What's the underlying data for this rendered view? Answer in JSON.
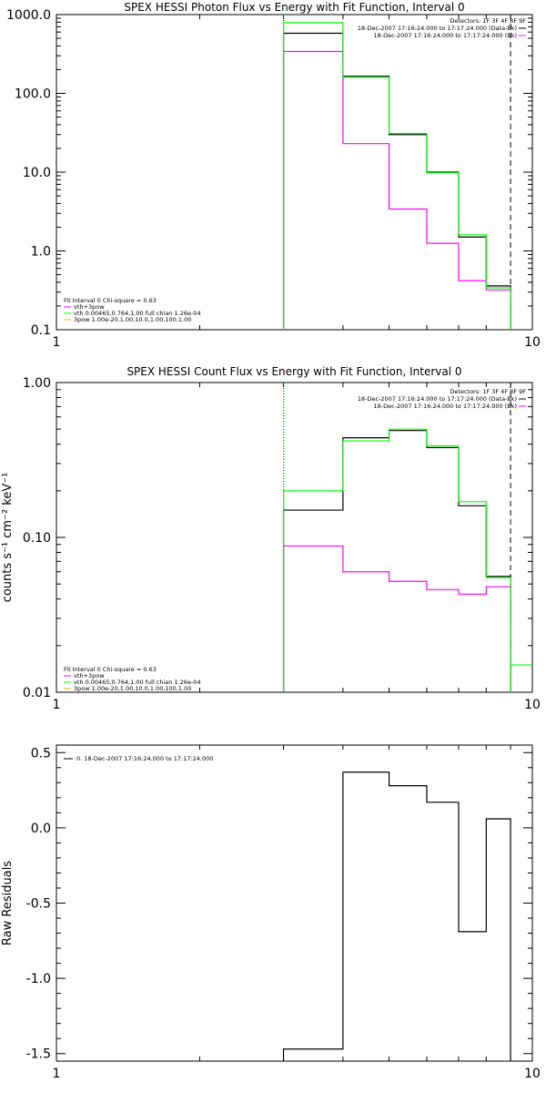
{
  "chart_data": [
    {
      "type": "line",
      "title": "SPEX HESSI Photon Flux vs Energy with Fit Function, Interval 0",
      "xlabel": "",
      "ylabel": "",
      "x_scale": "log",
      "y_scale": "log",
      "xlim": [
        1,
        10
      ],
      "ylim": [
        0.1,
        1000
      ],
      "x_ticks": [
        {
          "value": 1,
          "label": "1"
        },
        {
          "value": 10,
          "label": "10"
        }
      ],
      "y_ticks": [
        {
          "value": 0.1,
          "label": "0.1"
        },
        {
          "value": 1,
          "label": "1.0"
        },
        {
          "value": 10,
          "label": "10.0"
        },
        {
          "value": 100,
          "label": "100.0"
        },
        {
          "value": 1000,
          "label": "1000.0"
        }
      ],
      "bin_edges": [
        3,
        4,
        5,
        6,
        7,
        8,
        9
      ],
      "series": [
        {
          "name": "",
          "color": "#000000",
          "values": [
            580,
            165,
            30,
            10,
            1.5,
            0.36
          ]
        },
        {
          "name": "vth+3pow",
          "color": "#ff00ff",
          "values": [
            340,
            23,
            3.4,
            1.25,
            0.42,
            0.32
          ]
        },
        {
          "name": "vth 0.00465,0.764,1.00  full chian 1.26e-04",
          "color": "#00ff00",
          "values": [
            790,
            160,
            31,
            9.8,
            1.6,
            0.34
          ]
        },
        {
          "name": "3pow 1.00e-20,1.00,10.0,1.00,100,1.00",
          "color": "#ffaa00",
          "values": []
        }
      ],
      "vlines": [
        {
          "x": 3,
          "style": "dotted",
          "color": "#000000"
        },
        {
          "x": 3,
          "style": "dotted",
          "color": "#00ff00"
        },
        {
          "x": 9,
          "style": "dashed",
          "color": "#000000"
        }
      ],
      "annotations": {
        "detectors": "Detectors: 1F 3F 4F 8F 9F",
        "interval_data": "18-Dec-2007 17:16:24.000 to 17:17:24.000 (Data-Bk)",
        "interval_bk": "18-Dec-2007 17:16:24.000 to 17:17:24.000 (Bk)",
        "fit_info": "Fit Interval 0   Chi-square = 0.63"
      }
    },
    {
      "type": "line",
      "title": "SPEX HESSI Count Flux vs Energy with Fit Function, Interval 0",
      "xlabel": "",
      "ylabel": "counts s⁻¹ cm⁻² keV⁻¹",
      "x_scale": "log",
      "y_scale": "log",
      "xlim": [
        1,
        10
      ],
      "ylim": [
        0.01,
        1.0
      ],
      "x_ticks": [
        {
          "value": 1,
          "label": "1"
        },
        {
          "value": 10,
          "label": "10"
        }
      ],
      "y_ticks": [
        {
          "value": 0.01,
          "label": "0.01"
        },
        {
          "value": 0.1,
          "label": "0.10"
        },
        {
          "value": 1,
          "label": "1.00"
        }
      ],
      "bin_edges": [
        3,
        4,
        5,
        6,
        7,
        8,
        9
      ],
      "series": [
        {
          "name": "",
          "color": "#000000",
          "values": [
            0.15,
            0.44,
            0.49,
            0.38,
            0.16,
            0.056
          ]
        },
        {
          "name": "vth+3pow",
          "color": "#ff00ff",
          "values": [
            0.088,
            0.06,
            0.052,
            0.046,
            0.043,
            0.048
          ]
        },
        {
          "name": "vth 0.00465,0.764,1.00  full chian 1.26e-04",
          "color": "#00ff00",
          "values": [
            0.2,
            0.42,
            0.5,
            0.39,
            0.17,
            0.055
          ]
        },
        {
          "name": "3pow 1.00e-20,1.00,10.0,1.00,100,1.00",
          "color": "#ffaa00",
          "values": []
        }
      ],
      "extra_green_bin": {
        "edges": [
          9,
          10
        ],
        "value": 0.015
      },
      "vlines": [
        {
          "x": 3,
          "style": "dotted",
          "color": "#000000"
        },
        {
          "x": 3,
          "style": "dotted",
          "color": "#00ff00"
        },
        {
          "x": 9,
          "style": "dashed",
          "color": "#000000"
        }
      ],
      "annotations": {
        "detectors": "Detectors: 1F 3F 4F 8F 9F",
        "interval_data": "18-Dec-2007 17:16:24.000 to 17:17:24.000 (Data-Bk)",
        "interval_bk": "18-Dec-2007 17:16:24.000 to 17:17:24.000 (Bk)",
        "fit_info": "Fit Interval 0   Chi-square = 0.63"
      }
    },
    {
      "type": "line",
      "title": "",
      "xlabel": "",
      "ylabel": "Raw Residuals",
      "x_scale": "log",
      "y_scale": "linear",
      "xlim": [
        1,
        10
      ],
      "ylim": [
        -1.55,
        0.55
      ],
      "x_ticks": [
        {
          "value": 1,
          "label": "1"
        },
        {
          "value": 10,
          "label": "10"
        }
      ],
      "y_ticks": [
        {
          "value": 0.5,
          "label": "0.5"
        },
        {
          "value": 0.0,
          "label": "0.0"
        },
        {
          "value": -0.5,
          "label": "-0.5"
        },
        {
          "value": -1.0,
          "label": "-1.0"
        },
        {
          "value": -1.5,
          "label": "-1.5"
        }
      ],
      "bin_edges": [
        3,
        4,
        5,
        6,
        7,
        8,
        9
      ],
      "series": [
        {
          "name": "0. 18-Dec-2007 17:16:24.000 to 17:17:24.000",
          "color": "#000000",
          "values": [
            -1.47,
            0.37,
            0.28,
            0.17,
            -0.69,
            0.06
          ]
        }
      ]
    }
  ]
}
